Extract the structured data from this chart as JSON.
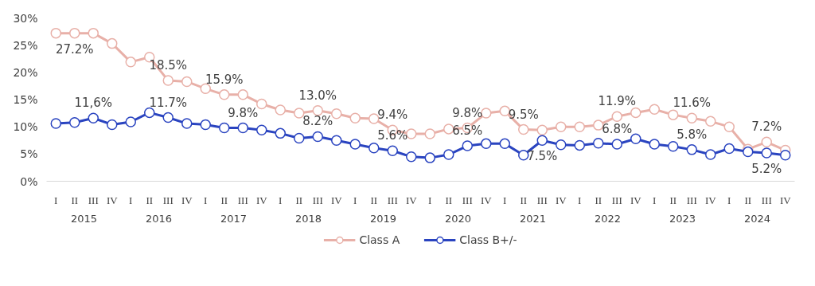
{
  "chart_data": {
    "type": "line",
    "categories": [
      "I",
      "II",
      "III",
      "IV",
      "I",
      "II",
      "III",
      "IV",
      "I",
      "II",
      "III",
      "IV",
      "I",
      "II",
      "III",
      "IV",
      "I",
      "II",
      "III",
      "IV",
      "I",
      "II",
      "III",
      "IV",
      "I",
      "II",
      "III",
      "IV",
      "I",
      "II",
      "III",
      "IV",
      "I",
      "II",
      "III",
      "IV",
      "I",
      "II",
      "III",
      "IV"
    ],
    "ylim": [
      0,
      30
    ],
    "yticks": [
      {
        "value": 0,
        "label": "0%"
      },
      {
        "value": 5,
        "label": "5%"
      },
      {
        "value": 10,
        "label": "10%"
      },
      {
        "value": 15,
        "label": "15%"
      },
      {
        "value": 20,
        "label": "20%"
      },
      {
        "value": 25,
        "label": "25%"
      },
      {
        "value": 30,
        "label": "30%"
      }
    ],
    "series": [
      {
        "name": "Class A",
        "color": "#e8b0a8",
        "values": [
          27.2,
          27.2,
          27.2,
          25.3,
          21.9,
          22.8,
          18.5,
          18.3,
          17.0,
          15.9,
          15.9,
          14.2,
          13.1,
          12.5,
          13.0,
          12.4,
          11.6,
          11.5,
          9.4,
          8.7,
          8.7,
          9.6,
          9.8,
          12.5,
          12.9,
          9.5,
          9.4,
          10.0,
          10.0,
          10.3,
          11.9,
          12.6,
          13.2,
          12.2,
          11.6,
          11.0,
          10.0,
          5.9,
          7.2,
          5.7
        ],
        "value_labels": [
          null,
          "27.2%",
          null,
          null,
          null,
          null,
          "18.5%",
          null,
          null,
          "15.9%",
          null,
          null,
          null,
          null,
          "13.0%",
          null,
          null,
          null,
          "9.4%",
          null,
          null,
          null,
          "9.8%",
          null,
          null,
          "9.5%",
          null,
          null,
          null,
          null,
          "11.9%",
          null,
          null,
          null,
          "11.6%",
          null,
          null,
          null,
          "7.2%",
          null
        ]
      },
      {
        "name": "Class B+/-",
        "color": "#2a44c0",
        "values": [
          10.6,
          10.8,
          11.6,
          10.4,
          10.9,
          12.6,
          11.7,
          10.6,
          10.4,
          9.8,
          9.8,
          9.4,
          8.8,
          7.9,
          8.2,
          7.5,
          6.8,
          6.1,
          5.6,
          4.5,
          4.3,
          4.9,
          6.5,
          6.9,
          6.9,
          4.8,
          7.5,
          6.7,
          6.6,
          7.0,
          6.8,
          7.8,
          6.8,
          6.4,
          5.8,
          4.9,
          6.0,
          5.4,
          5.2,
          4.8
        ],
        "value_labels": [
          null,
          null,
          "11,6%",
          null,
          null,
          null,
          "11.7%",
          null,
          null,
          null,
          "9.8%",
          null,
          null,
          null,
          "8.2%",
          null,
          null,
          null,
          "5.6%",
          null,
          null,
          null,
          "6.5%",
          null,
          null,
          null,
          "7.5%",
          null,
          null,
          null,
          "6.8%",
          null,
          null,
          null,
          "5.8%",
          null,
          null,
          null,
          "5.2%",
          null
        ]
      }
    ],
    "marker": "circle",
    "line_style": "solid",
    "legend": "bottom",
    "annotations": [
      "2015",
      "2016",
      "2017",
      "2018",
      "2019",
      "2020",
      "2021",
      "2022",
      "2023",
      "2024"
    ]
  }
}
